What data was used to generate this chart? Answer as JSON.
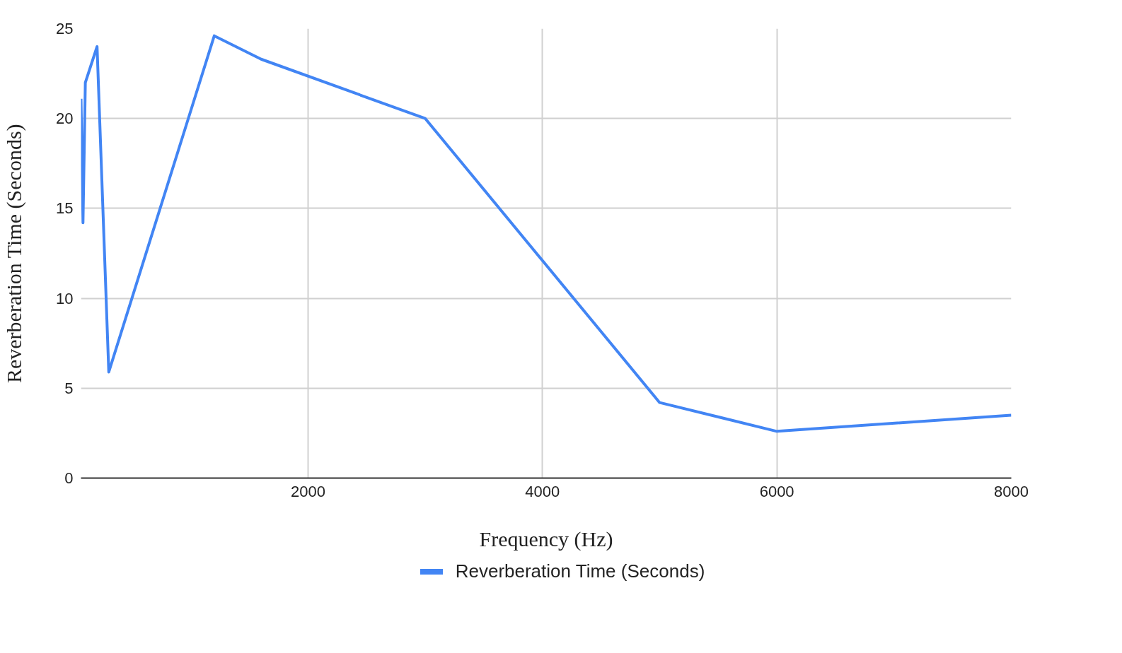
{
  "chart_data": {
    "type": "line",
    "xlabel": "Frequency (Hz)",
    "ylabel": "Reverberation Time (Seconds)",
    "x": [
      63,
      80,
      100,
      200,
      300,
      1200,
      1600,
      3000,
      5000,
      6000,
      8000
    ],
    "series": [
      {
        "name": "Reverberation Time (Seconds)",
        "color": "#4285f4",
        "values": [
          21.1,
          14.2,
          22.0,
          24.0,
          5.9,
          24.6,
          23.3,
          20.0,
          4.2,
          2.6,
          3.5
        ]
      }
    ],
    "xlim": [
      63,
      8000
    ],
    "xticks": [
      2000,
      4000,
      6000,
      8000
    ],
    "ylim": [
      0,
      25
    ],
    "yticks": [
      0,
      5,
      10,
      15,
      20,
      25
    ],
    "grid": true,
    "legend": "bottom",
    "marker": "none",
    "line_style": "solid"
  }
}
